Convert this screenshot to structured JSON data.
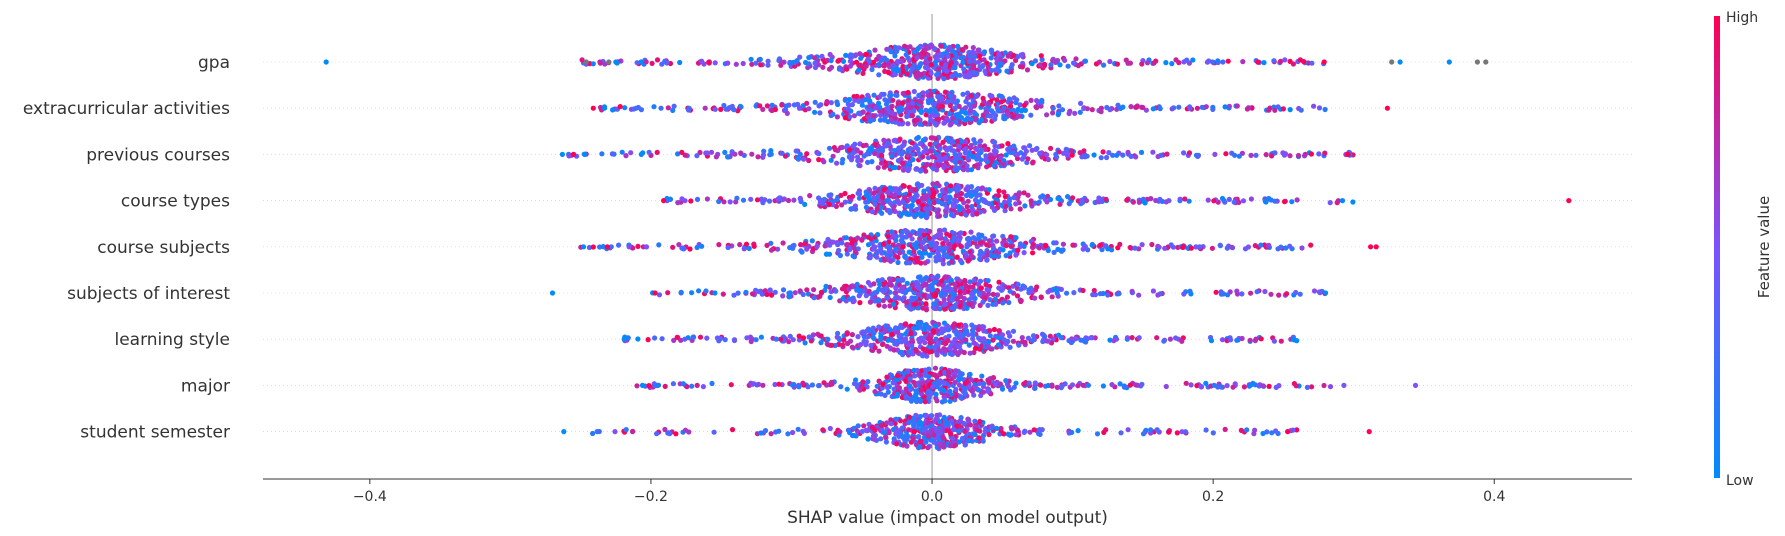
{
  "chart_data": {
    "type": "beeswarm",
    "title": "",
    "xlabel": "SHAP value (impact on model output)",
    "xlim": [
      -0.476,
      0.498
    ],
    "xticks": [
      -0.4,
      -0.2,
      0.0,
      0.2,
      0.4
    ],
    "xtick_labels": [
      "−0.4",
      "−0.2",
      "0.0",
      "0.2",
      "0.4"
    ],
    "zero_line": true,
    "grid": false,
    "features": [
      {
        "name": "gpa",
        "spread": [
          -0.25,
          0.28
        ],
        "core": 0.032,
        "density": 620,
        "outliers": [
          {
            "x": -0.431,
            "c": "low"
          },
          {
            "x": -0.246,
            "c": "gray"
          },
          {
            "x": -0.23,
            "c": "gray"
          },
          {
            "x": -0.225,
            "c": "low"
          },
          {
            "x": -0.207,
            "c": "low"
          },
          {
            "x": 0.327,
            "c": "gray"
          },
          {
            "x": 0.333,
            "c": "low"
          },
          {
            "x": 0.368,
            "c": "low"
          },
          {
            "x": 0.388,
            "c": "gray"
          },
          {
            "x": 0.394,
            "c": "gray"
          },
          {
            "x": 0.279,
            "c": "high"
          }
        ]
      },
      {
        "name": "extracurricular activities",
        "spread": [
          -0.24,
          0.28
        ],
        "core": 0.036,
        "density": 600,
        "outliers": [
          {
            "x": -0.241,
            "c": "high"
          },
          {
            "x": -0.233,
            "c": "low"
          },
          {
            "x": 0.324,
            "c": "high"
          }
        ]
      },
      {
        "name": "previous courses",
        "spread": [
          -0.26,
          0.3
        ],
        "core": 0.034,
        "density": 580,
        "outliers": [
          {
            "x": -0.263,
            "c": "low"
          },
          {
            "x": -0.255,
            "c": "high"
          },
          {
            "x": -0.247,
            "c": "low"
          },
          {
            "x": 0.296,
            "c": "high"
          }
        ]
      },
      {
        "name": "course types",
        "spread": [
          -0.19,
          0.3
        ],
        "core": 0.03,
        "density": 560,
        "outliers": [
          {
            "x": -0.191,
            "c": "high"
          },
          {
            "x": 0.453,
            "c": "high"
          },
          {
            "x": 0.292,
            "c": "low"
          }
        ]
      },
      {
        "name": "course subjects",
        "spread": [
          -0.25,
          0.27
        ],
        "core": 0.033,
        "density": 570,
        "outliers": [
          {
            "x": -0.248,
            "c": "low"
          },
          {
            "x": -0.231,
            "c": "high"
          },
          {
            "x": 0.312,
            "c": "high"
          },
          {
            "x": 0.316,
            "c": "high"
          }
        ]
      },
      {
        "name": "subjects of interest",
        "spread": [
          -0.2,
          0.28
        ],
        "core": 0.03,
        "density": 560,
        "outliers": [
          {
            "x": -0.27,
            "c": "low"
          },
          {
            "x": -0.197,
            "c": "high"
          },
          {
            "x": 0.28,
            "c": "low"
          }
        ]
      },
      {
        "name": "learning style",
        "spread": [
          -0.22,
          0.26
        ],
        "core": 0.028,
        "density": 540,
        "outliers": [
          {
            "x": -0.219,
            "c": "low"
          },
          {
            "x": 0.257,
            "c": "low"
          }
        ]
      },
      {
        "name": "major",
        "spread": [
          -0.21,
          0.29
        ],
        "core": 0.02,
        "density": 480,
        "outliers": [
          {
            "x": -0.206,
            "c": "low"
          },
          {
            "x": 0.344,
            "c": "mid"
          },
          {
            "x": 0.293,
            "c": "mid"
          }
        ]
      },
      {
        "name": "student semester",
        "spread": [
          -0.26,
          0.26
        ],
        "core": 0.02,
        "density": 480,
        "outliers": [
          {
            "x": -0.262,
            "c": "low"
          },
          {
            "x": 0.311,
            "c": "high"
          },
          {
            "x": 0.253,
            "c": "high"
          }
        ]
      }
    ],
    "colorbar": {
      "label": "Feature value",
      "high_label": "High",
      "low_label": "Low",
      "high_color": "#ff0052",
      "mid_color": "#7c52ff",
      "low_color": "#008bfb",
      "missing_color": "#777777"
    }
  }
}
